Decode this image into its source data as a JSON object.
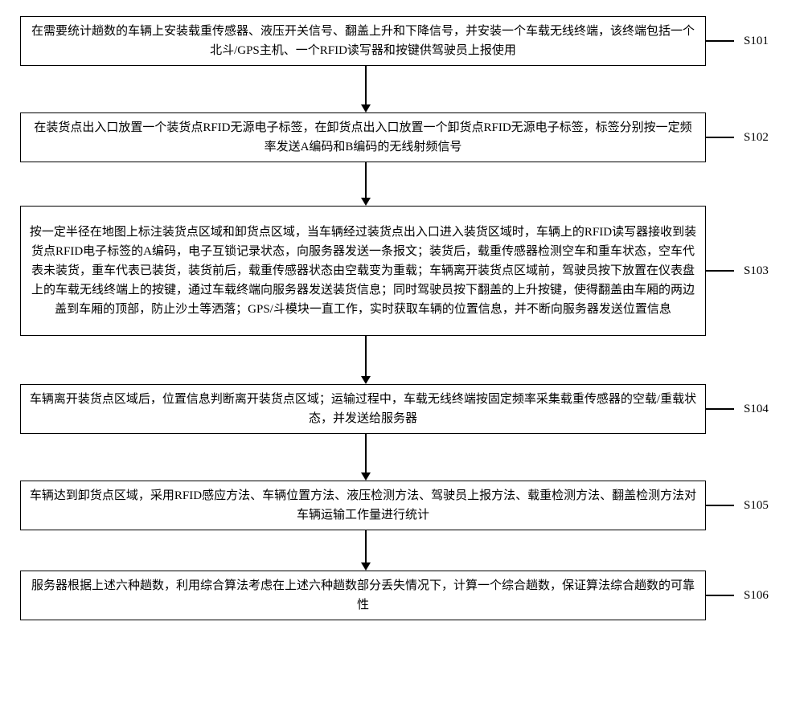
{
  "flowchart": {
    "type": "flowchart",
    "background_color": "#ffffff",
    "border_color": "#000000",
    "text_color": "#000000",
    "font_family": "SimSun",
    "font_size": 15,
    "line_height": 1.6,
    "box_border_width": 1.5,
    "arrow_color": "#000000",
    "steps": [
      {
        "id": "S101",
        "label": "S101",
        "text": "在需要统计趟数的车辆上安装载重传感器、液压开关信号、翻盖上升和下降信号，并安装一个车载无线终端，该终端包括一个北斗/GPS主机、一个RFID读写器和按键供驾驶员上报使用",
        "height": 62
      },
      {
        "id": "S102",
        "label": "S102",
        "text": "在装货点出入口放置一个装货点RFID无源电子标签，在卸货点出入口放置一个卸货点RFID无源电子标签，标签分别按一定频率发送A编码和B编码的无线射频信号",
        "height": 62
      },
      {
        "id": "S103",
        "label": "S103",
        "text": "按一定半径在地图上标注装货点区域和卸货点区域，当车辆经过装货点出入口进入装货区域时，车辆上的RFID读写器接收到装货点RFID电子标签的A编码，电子互锁记录状态，向服务器发送一条报文；装货后，载重传感器检测空车和重车状态，空车代表未装货，重车代表已装货，装货前后，载重传感器状态由空载变为重载；车辆离开装货点区域前，驾驶员按下放置在仪表盘上的车载无线终端上的按键，通过车载终端向服务器发送装货信息；同时驾驶员按下翻盖的上升按键，使得翻盖由车厢的两边盖到车厢的顶部，防止沙土等洒落；GPS/斗模块一直工作，实时获取车辆的位置信息，并不断向服务器发送位置信息",
        "height": 162
      },
      {
        "id": "S104",
        "label": "S104",
        "text": "车辆离开装货点区域后，位置信息判断离开装货点区域；运输过程中，车载无线终端按固定频率采集载重传感器的空载/重载状态，并发送给服务器",
        "height": 62
      },
      {
        "id": "S105",
        "label": "S105",
        "text": "车辆达到卸货点区域，采用RFID感应方法、车辆位置方法、液压检测方法、驾驶员上报方法、载重检测方法、翻盖检测方法对车辆运输工作量进行统计",
        "height": 62
      },
      {
        "id": "S106",
        "label": "S106",
        "text": "服务器根据上述六种趟数，利用综合算法考虑在上述六种趟数部分丢失情况下，计算一个综合趟数，保证算法综合趟数的可靠性",
        "height": 62
      }
    ],
    "arrows": [
      {
        "from": "S101",
        "to": "S102",
        "height": 48
      },
      {
        "from": "S102",
        "to": "S103",
        "height": 44
      },
      {
        "from": "S103",
        "to": "S104",
        "height": 50
      },
      {
        "from": "S104",
        "to": "S105",
        "height": 48
      },
      {
        "from": "S105",
        "to": "S106",
        "height": 40
      }
    ]
  }
}
